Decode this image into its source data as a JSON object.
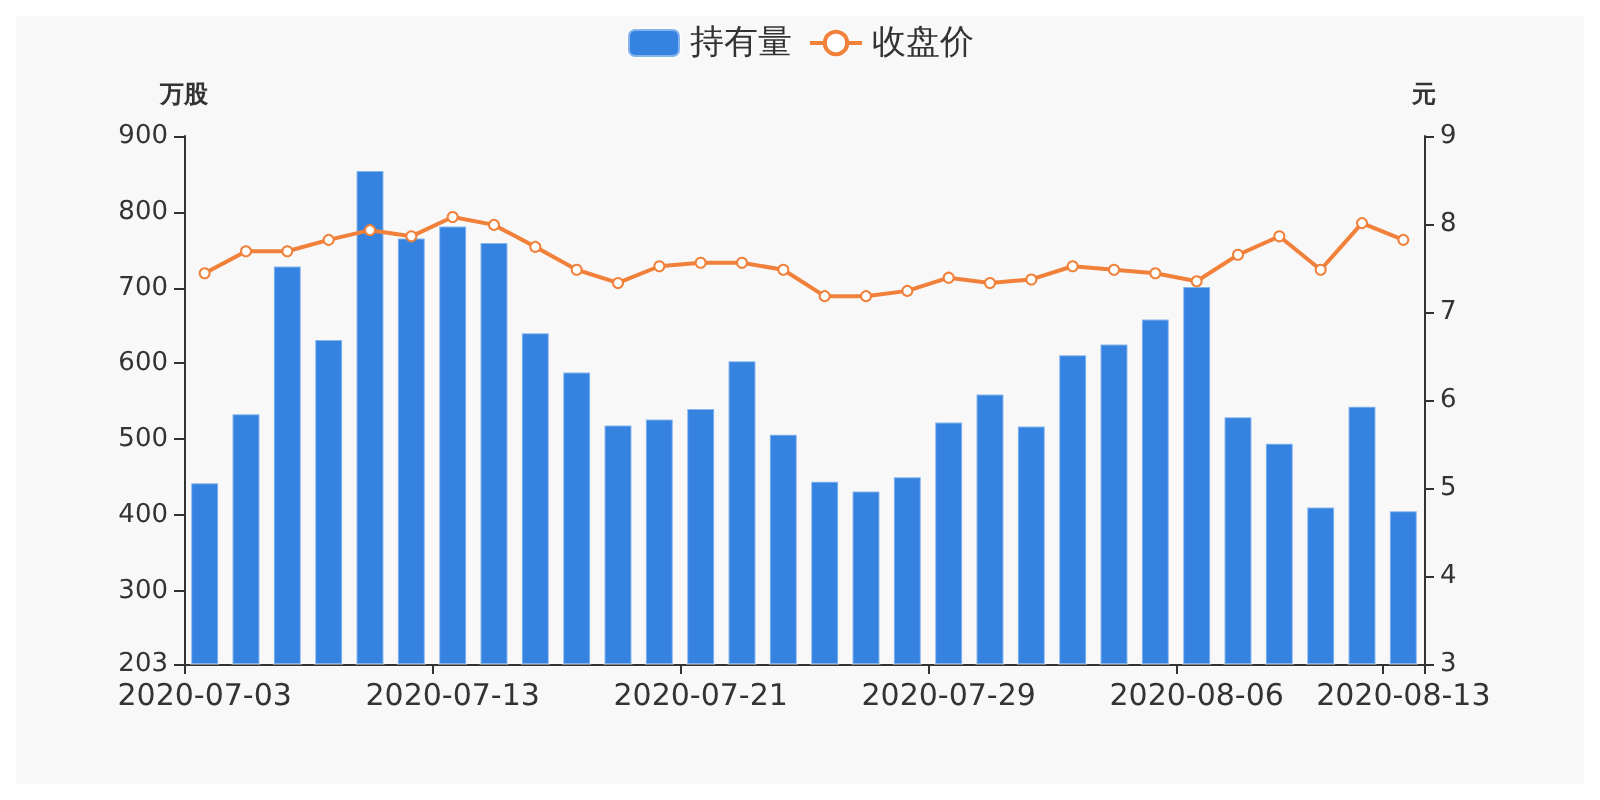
{
  "chart_data": {
    "type": "bar",
    "ylabel": "万股",
    "y2label": "元",
    "categories": [
      "2020-07-03",
      null,
      null,
      null,
      null,
      null,
      "2020-07-13",
      null,
      null,
      null,
      null,
      null,
      "2020-07-21",
      null,
      null,
      null,
      null,
      null,
      "2020-07-29",
      null,
      null,
      null,
      null,
      null,
      "2020-08-06",
      null,
      null,
      null,
      null,
      "2020-08-13"
    ],
    "series": [
      {
        "name": "持有量",
        "color": "#3582e0",
        "values": [
          443,
          534,
          729,
          632,
          855,
          766,
          782,
          760,
          641,
          589,
          519,
          527,
          541,
          604,
          507,
          445,
          432,
          451,
          523,
          560,
          518,
          612,
          626,
          659,
          702,
          530,
          495,
          411,
          544,
          406
        ]
      },
      {
        "name": "收盘价",
        "type": "line",
        "axis": "y2",
        "color": "#f0803a",
        "marker": "circle",
        "values": [
          7.44,
          7.69,
          7.69,
          7.82,
          7.93,
          7.86,
          8.08,
          7.99,
          7.74,
          7.48,
          7.33,
          7.52,
          7.56,
          7.56,
          7.48,
          7.18,
          7.18,
          7.24,
          7.39,
          7.33,
          7.37,
          7.52,
          7.48,
          7.44,
          7.35,
          7.65,
          7.86,
          7.48,
          8.01,
          7.82
        ]
      }
    ],
    "ylim": [
      203,
      900
    ],
    "yticks": [
      203,
      300,
      400,
      500,
      600,
      700,
      800,
      900
    ],
    "y2lim": [
      3,
      9
    ],
    "y2ticks": [
      3,
      4,
      5,
      6,
      7,
      8,
      9
    ],
    "grid": false,
    "legend": "top"
  }
}
